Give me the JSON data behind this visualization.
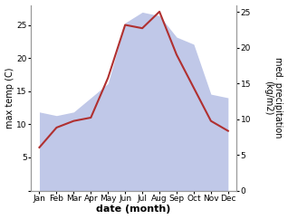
{
  "months": [
    "Jan",
    "Feb",
    "Mar",
    "Apr",
    "May",
    "Jun",
    "Jul",
    "Aug",
    "Sep",
    "Oct",
    "Nov",
    "Dec"
  ],
  "x": [
    0,
    1,
    2,
    3,
    4,
    5,
    6,
    7,
    8,
    9,
    10,
    11
  ],
  "temperature": [
    6.5,
    9.5,
    10.5,
    11.0,
    17.0,
    25.0,
    24.5,
    27.0,
    20.5,
    15.5,
    10.5,
    9.0
  ],
  "precipitation": [
    11.0,
    10.5,
    11.0,
    13.0,
    15.0,
    23.5,
    25.0,
    24.5,
    21.5,
    20.5,
    13.5,
    13.0
  ],
  "temp_color": "#b03030",
  "precip_fill_color": "#c0c8e8",
  "ylabel_left": "max temp (C)",
  "ylabel_right": "med. precipitation\n(kg/m2)",
  "xlabel": "date (month)",
  "ylim_left": [
    0,
    28
  ],
  "ylim_right": [
    0,
    26
  ],
  "yticks_left": [
    0,
    5,
    10,
    15,
    20,
    25
  ],
  "ytick_labels_left": [
    "",
    "5",
    "10",
    "15",
    "20",
    "25"
  ],
  "yticks_right": [
    0,
    5,
    10,
    15,
    20,
    25
  ],
  "bg_color": "#ffffff",
  "spine_color": "#999999",
  "temp_linewidth": 1.5,
  "xlabel_fontsize": 8,
  "ylabel_fontsize": 7,
  "tick_fontsize": 6.5
}
